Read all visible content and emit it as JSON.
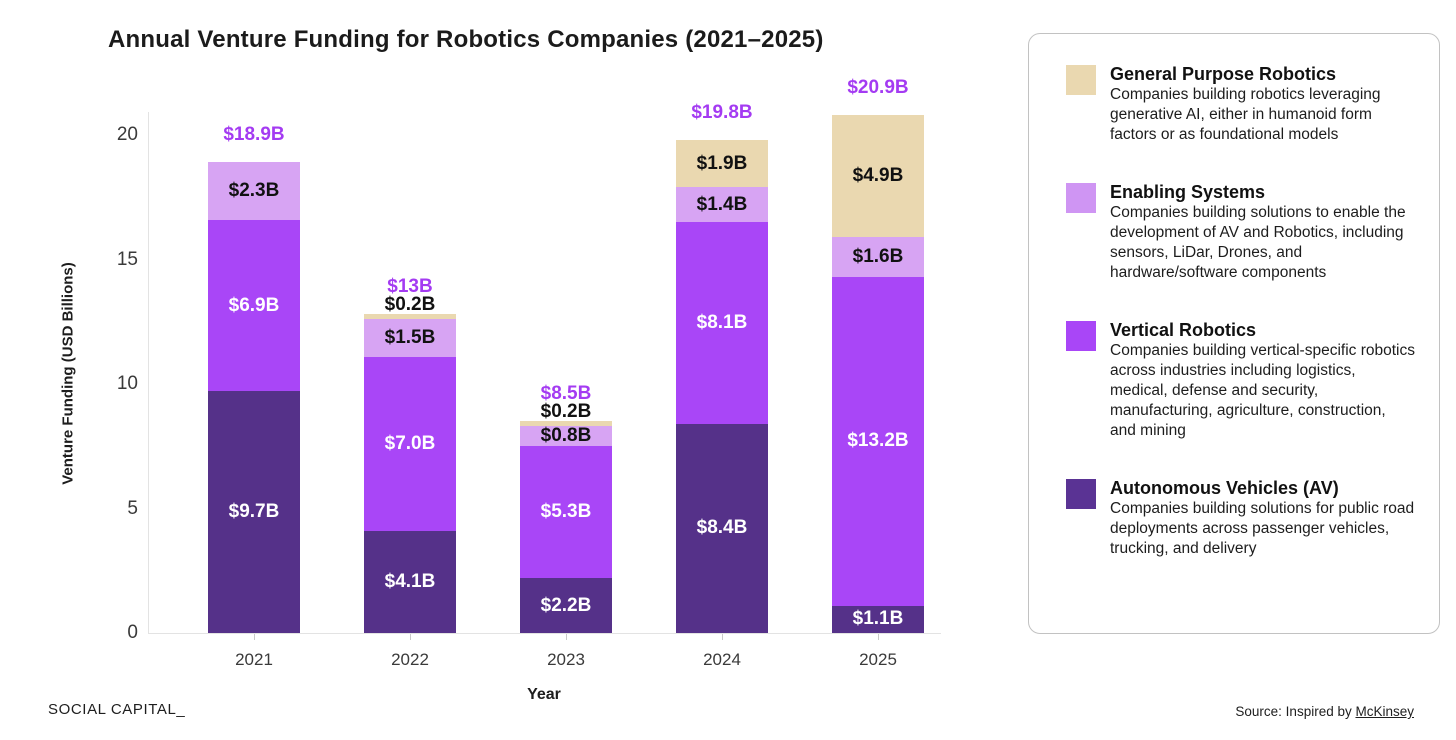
{
  "header": {
    "title": "Annual Venture Funding for Robotics Companies (2021–2025)"
  },
  "chart_data": {
    "type": "bar",
    "stacked": true,
    "title": "Annual Venture Funding for Robotics Companies (2021–2025)",
    "xlabel": "Year",
    "ylabel": "Venture Funding (USD Billions)",
    "ylim": [
      0,
      21
    ],
    "yticks": [
      0,
      5,
      10,
      15,
      20
    ],
    "grid": false,
    "legend_position": "right",
    "categories": [
      "2021",
      "2022",
      "2023",
      "2024",
      "2025"
    ],
    "totals": {
      "values": [
        18.9,
        13,
        8.5,
        19.8,
        20.9
      ],
      "labels": [
        "$18.9B",
        "$13B",
        "$8.5B",
        "$19.8B",
        "$20.9B"
      ],
      "label_color": "#a43bf2"
    },
    "series": [
      {
        "name": "Autonomous Vehicles (AV)",
        "color": "#553189",
        "label_color": "#ffffff",
        "values": [
          9.7,
          4.1,
          2.2,
          8.4,
          1.1
        ],
        "labels": [
          "$9.7B",
          "$4.1B",
          "$2.2B",
          "$8.4B",
          "$1.1B"
        ]
      },
      {
        "name": "Vertical Robotics",
        "color": "#a946f7",
        "label_color": "#ffffff",
        "values": [
          6.9,
          7.0,
          5.3,
          8.1,
          13.2
        ],
        "labels": [
          "$6.9B",
          "$7.0B",
          "$5.3B",
          "$8.1B",
          "$13.2B"
        ]
      },
      {
        "name": "Enabling Systems",
        "color": "#d7a4f3",
        "label_color": "#111111",
        "values": [
          2.3,
          1.5,
          0.8,
          1.4,
          1.6
        ],
        "labels": [
          "$2.3B",
          "$1.5B",
          "$0.8B",
          "$1.4B",
          "$1.6B"
        ]
      },
      {
        "name": "General Purpose Robotics",
        "color": "#ead8b0",
        "label_color": "#111111",
        "values": [
          0,
          0.2,
          0.2,
          1.9,
          4.9
        ],
        "labels": [
          "",
          "$0.2B",
          "$0.2B",
          "$1.9B",
          "$4.9B"
        ]
      }
    ]
  },
  "legend": {
    "items": [
      {
        "name": "General Purpose Robotics",
        "color": "#ead8b0",
        "description": "Companies building robotics leveraging generative AI, either in humanoid form factors or as foundational models"
      },
      {
        "name": "Enabling Systems",
        "color": "#cf95f3",
        "description": "Companies building solutions to enable the development of AV and Robotics, including sensors, LiDar, Drones, and hardware/software components"
      },
      {
        "name": "Vertical Robotics",
        "color": "#a946f7",
        "description": "Companies building vertical-specific robotics across industries including logistics, medical, defense and security, manufacturing, agriculture, construction, and mining"
      },
      {
        "name": "Autonomous Vehicles (AV)",
        "color": "#5a3394",
        "description": "Companies building solutions for public road deployments across passenger vehicles, trucking, and delivery"
      }
    ]
  },
  "footer": {
    "brand": "SOCIAL CAPITAL_",
    "source_prefix": "Source: Inspired by ",
    "source_link": "McKinsey"
  }
}
